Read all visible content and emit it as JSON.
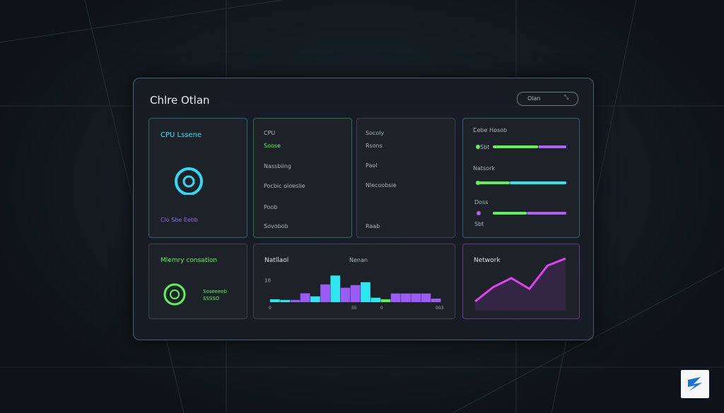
{
  "header": {
    "title": "Chlre Otlan",
    "search": "Olan"
  },
  "cards": {
    "cpu": {
      "title": "CPU Lssene",
      "footer": "Clo Sbe Eebb"
    },
    "cpu_list": {
      "title": "CPU",
      "status": "Soose",
      "items": [
        "Nassbiing",
        "Pocbic oloeslie",
        "Poob",
        "Sovobob"
      ]
    },
    "security": {
      "title": "Socoly",
      "items": [
        "Rsons",
        "Paol",
        "Nlecoobsie",
        "Raab"
      ]
    },
    "devices": {
      "title": "Cebe Hosob",
      "items": [
        "Sbt",
        "Natsork",
        "Doss",
        "Sbt"
      ]
    },
    "memory": {
      "title": "Mlemry consation",
      "lines": [
        "Soseeeeb",
        "SSSSO"
      ]
    }
  },
  "chart_data": [
    {
      "type": "bar",
      "title": "Natllaol",
      "subtitle": "Nenan",
      "ylim": [
        0,
        14
      ],
      "yticks": [
        10
      ],
      "x_labels": [
        "0",
        "S5",
        "0",
        "003"
      ],
      "values": [
        1.3,
        1,
        1,
        4,
        2.6,
        8,
        12,
        6.5,
        7.7,
        9,
        2,
        1.3,
        3.9,
        3.9,
        3.9,
        3.9,
        1.6
      ],
      "colors": [
        "#2ee6f0",
        "#2ee6f0",
        "#9b5cf5",
        "#9b5cf5",
        "#2ee6f0",
        "#9b5cf5",
        "#2ee6f0",
        "#9b5cf5",
        "#9b5cf5",
        "#2ee6f0",
        "#2ee6f0",
        "#5ff05a",
        "#9b5cf5",
        "#9b5cf5",
        "#9b5cf5",
        "#9b5cf5",
        "#9b5cf5"
      ]
    },
    {
      "type": "line",
      "title": "Network",
      "ylim": [
        0,
        30
      ],
      "values": [
        2,
        10,
        15,
        9,
        22,
        26
      ],
      "color": "#e040f0"
    }
  ]
}
